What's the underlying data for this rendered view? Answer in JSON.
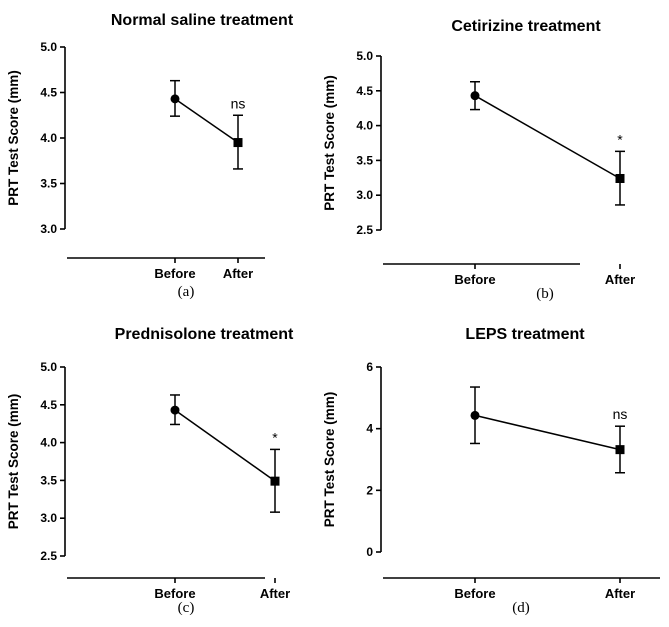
{
  "chart_data": [
    {
      "type": "line",
      "title": "Normal saline treatment",
      "ylabel": "PRT Test Score (mm)",
      "xlabel": "",
      "categories": [
        "Before",
        "After"
      ],
      "ylim": [
        3.0,
        5.0
      ],
      "yticks": [
        "3.0",
        "3.5",
        "4.0",
        "4.5",
        "5.0"
      ],
      "values": [
        4.43,
        3.95
      ],
      "errors": [
        [
          4.24,
          4.63
        ],
        [
          3.66,
          4.25
        ]
      ],
      "markers": [
        "circle",
        "square"
      ],
      "annotations": [
        {
          "x": "After",
          "text": "ns"
        }
      ],
      "caption": "(a)"
    },
    {
      "type": "line",
      "title": "Cetirizine treatment",
      "ylabel": "PRT Test Score (mm)",
      "xlabel": "",
      "categories": [
        "Before",
        "After"
      ],
      "ylim": [
        2.5,
        5.0
      ],
      "yticks": [
        "2.5",
        "3.0",
        "3.5",
        "4.0",
        "4.5",
        "5.0"
      ],
      "values": [
        4.43,
        3.24
      ],
      "errors": [
        [
          4.23,
          4.63
        ],
        [
          2.86,
          3.63
        ]
      ],
      "markers": [
        "circle",
        "square"
      ],
      "annotations": [
        {
          "x": "After",
          "text": "*"
        }
      ],
      "caption": "(b)"
    },
    {
      "type": "line",
      "title": "Prednisolone treatment",
      "ylabel": "PRT Test Score (mm)",
      "xlabel": "",
      "categories": [
        "Before",
        "After"
      ],
      "ylim": [
        2.5,
        5.0
      ],
      "yticks": [
        "2.5",
        "3.0",
        "3.5",
        "4.0",
        "4.5",
        "5.0"
      ],
      "values": [
        4.43,
        3.49
      ],
      "errors": [
        [
          4.24,
          4.63
        ],
        [
          3.08,
          3.91
        ]
      ],
      "markers": [
        "circle",
        "square"
      ],
      "annotations": [
        {
          "x": "After",
          "text": "*"
        }
      ],
      "caption": "(c)"
    },
    {
      "type": "line",
      "title": "LEPS treatment",
      "ylabel": "PRT Test Score (mm)",
      "xlabel": "",
      "categories": [
        "Before",
        "After"
      ],
      "ylim": [
        0,
        6
      ],
      "yticks": [
        "0",
        "2",
        "4",
        "6"
      ],
      "values": [
        4.43,
        3.32
      ],
      "errors": [
        [
          3.52,
          5.35
        ],
        [
          2.57,
          4.08
        ]
      ],
      "markers": [
        "circle",
        "square"
      ],
      "annotations": [
        {
          "x": "After",
          "text": "ns"
        }
      ],
      "caption": "(d)"
    }
  ]
}
